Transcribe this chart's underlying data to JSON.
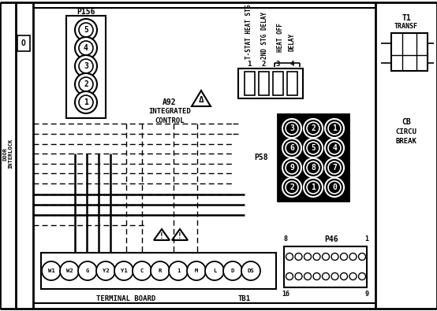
{
  "bg_color": "#ffffff",
  "line_color": "#000000",
  "p156_label": "P156",
  "p156_terminals": [
    "5",
    "4",
    "3",
    "2",
    "1"
  ],
  "a92_lines": [
    "A92",
    "INTEGRATED",
    "CONTROL"
  ],
  "relay_labels": [
    "T-STAT HEAT STG",
    "2ND STG DELAY",
    "HEAT OFF",
    "DELAY"
  ],
  "relay_numbers": [
    "1",
    "2",
    "3",
    "4"
  ],
  "p58_label": "P58",
  "p58_terminals": [
    [
      "3",
      "2",
      "1"
    ],
    [
      "6",
      "5",
      "4"
    ],
    [
      "9",
      "8",
      "7"
    ],
    [
      "2",
      "1",
      "0"
    ]
  ],
  "terminal_labels": [
    "W1",
    "W2",
    "G",
    "Y2",
    "Y1",
    "C",
    "R",
    "1",
    "M",
    "L",
    "D",
    "DS"
  ],
  "terminal_board_label": "TERMINAL BOARD",
  "tb1_label": "TB1",
  "p46_label": "P46",
  "t1_lines": [
    "T1",
    "TRANSF"
  ],
  "cb_lines": [
    "CB",
    "CIRCU",
    "BREAK"
  ],
  "door_interlock": "DOOR\nINTERLOCK"
}
